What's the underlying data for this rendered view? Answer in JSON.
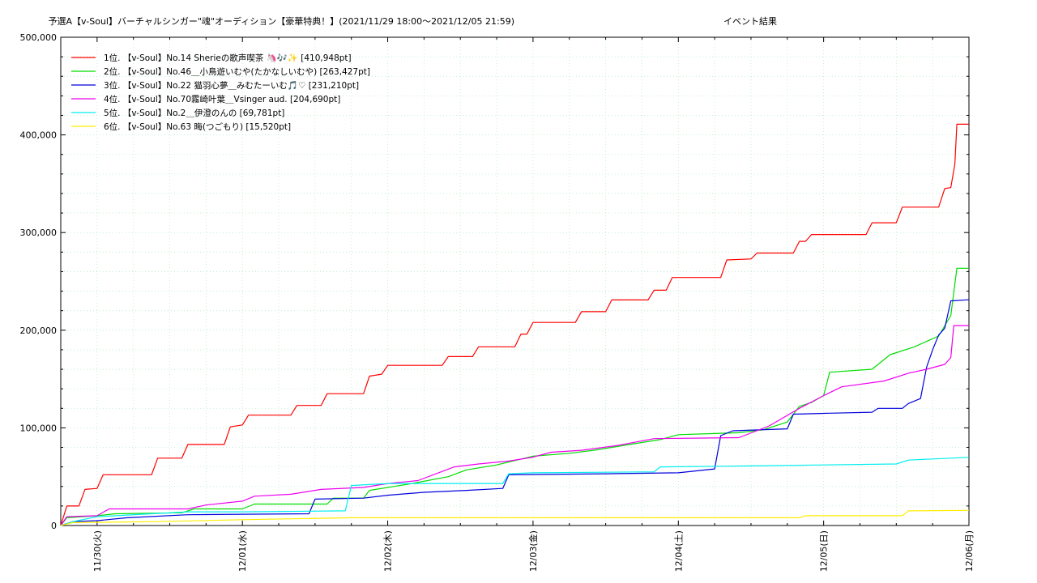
{
  "chart_data": {
    "type": "line",
    "title": "予選A【v-Soul】バーチャルシンガー\"魂\"オーディション【豪華特典！】(2021/11/29 18:00〜2021/12/05 21:59)",
    "subtitle": "イベント結果",
    "xlim": [
      "2021-11-29 18:00",
      "2021-12-06 00:00"
    ],
    "ylim": [
      0,
      500000
    ],
    "y_ticks": [
      "0",
      "100,000",
      "200,000",
      "300,000",
      "400,000",
      "500,000"
    ],
    "x_ticks": [
      {
        "x": "2021-11-30 00:00",
        "label": "11/30(火)"
      },
      {
        "x": "2021-12-01 00:00",
        "label": "12/01(水)"
      },
      {
        "x": "2021-12-02 00:00",
        "label": "12/02(木)"
      },
      {
        "x": "2021-12-03 00:00",
        "label": "12/03(金)"
      },
      {
        "x": "2021-12-04 00:00",
        "label": "12/04(土)"
      },
      {
        "x": "2021-12-05 00:00",
        "label": "12/05(日)"
      },
      {
        "x": "2021-12-06 00:00",
        "label": "12/06(月)"
      }
    ],
    "grid": true,
    "legend_position": "top-left",
    "series": [
      {
        "name": "1位. 【v-Soul】No.14 Sherieの歌声喫茶 🦄🎶✨ [410,948pt]",
        "color": "#ff0000",
        "points": [
          [
            "2021-11-29 18:00",
            0
          ],
          [
            "2021-11-29 19:00",
            20000
          ],
          [
            "2021-11-29 21:00",
            20000
          ],
          [
            "2021-11-29 22:00",
            37000
          ],
          [
            "2021-11-30 00:00",
            38000
          ],
          [
            "2021-11-30 01:00",
            52000
          ],
          [
            "2021-11-30 09:00",
            52000
          ],
          [
            "2021-11-30 10:00",
            69000
          ],
          [
            "2021-11-30 14:00",
            69000
          ],
          [
            "2021-11-30 15:00",
            83000
          ],
          [
            "2021-11-30 21:00",
            83000
          ],
          [
            "2021-11-30 22:00",
            101000
          ],
          [
            "2021-12-01 00:00",
            103000
          ],
          [
            "2021-12-01 01:00",
            113000
          ],
          [
            "2021-12-01 08:00",
            113000
          ],
          [
            "2021-12-01 09:00",
            123000
          ],
          [
            "2021-12-01 13:00",
            123000
          ],
          [
            "2021-12-01 14:00",
            135000
          ],
          [
            "2021-12-01 20:00",
            135000
          ],
          [
            "2021-12-01 21:00",
            153000
          ],
          [
            "2021-12-01 23:00",
            155000
          ],
          [
            "2021-12-02 00:00",
            164000
          ],
          [
            "2021-12-02 09:00",
            164000
          ],
          [
            "2021-12-02 10:00",
            173000
          ],
          [
            "2021-12-02 14:00",
            173000
          ],
          [
            "2021-12-02 15:00",
            183000
          ],
          [
            "2021-12-02 21:00",
            183000
          ],
          [
            "2021-12-02 22:00",
            196000
          ],
          [
            "2021-12-02 23:00",
            196000
          ],
          [
            "2021-12-03 00:00",
            208000
          ],
          [
            "2021-12-03 07:00",
            208000
          ],
          [
            "2021-12-03 08:00",
            219000
          ],
          [
            "2021-12-03 12:00",
            219000
          ],
          [
            "2021-12-03 13:00",
            231000
          ],
          [
            "2021-12-03 19:00",
            231000
          ],
          [
            "2021-12-03 20:00",
            241000
          ],
          [
            "2021-12-03 22:00",
            241000
          ],
          [
            "2021-12-03 23:00",
            254000
          ],
          [
            "2021-12-04 07:00",
            254000
          ],
          [
            "2021-12-04 08:00",
            272000
          ],
          [
            "2021-12-04 12:00",
            273000
          ],
          [
            "2021-12-04 13:00",
            279000
          ],
          [
            "2021-12-04 19:00",
            279000
          ],
          [
            "2021-12-04 20:00",
            291000
          ],
          [
            "2021-12-04 21:00",
            291000
          ],
          [
            "2021-12-04 22:00",
            298000
          ],
          [
            "2021-12-05 07:00",
            298000
          ],
          [
            "2021-12-05 08:00",
            310000
          ],
          [
            "2021-12-05 12:00",
            310000
          ],
          [
            "2021-12-05 13:00",
            326000
          ],
          [
            "2021-12-05 19:00",
            326000
          ],
          [
            "2021-12-05 20:00",
            345000
          ],
          [
            "2021-12-05 21:00",
            346000
          ],
          [
            "2021-12-05 21:40",
            370000
          ],
          [
            "2021-12-05 22:00",
            410948
          ],
          [
            "2021-12-05 23:59",
            410948
          ]
        ]
      },
      {
        "name": "2位. 【v-Soul】No.46＿小鳥遊いむや(たかなしいむや) [263,427pt]",
        "color": "#00dd00",
        "points": [
          [
            "2021-11-29 18:00",
            0
          ],
          [
            "2021-11-29 19:00",
            8000
          ],
          [
            "2021-11-30 00:00",
            10000
          ],
          [
            "2021-11-30 03:00",
            12000
          ],
          [
            "2021-11-30 14:00",
            13000
          ],
          [
            "2021-11-30 16:00",
            17000
          ],
          [
            "2021-12-01 00:00",
            17000
          ],
          [
            "2021-12-01 02:00",
            22000
          ],
          [
            "2021-12-01 14:00",
            22000
          ],
          [
            "2021-12-01 15:00",
            28000
          ],
          [
            "2021-12-01 20:00",
            28000
          ],
          [
            "2021-12-01 21:00",
            36000
          ],
          [
            "2021-12-02 01:00",
            40000
          ],
          [
            "2021-12-02 04:00",
            43000
          ],
          [
            "2021-12-02 10:00",
            50000
          ],
          [
            "2021-12-02 13:00",
            57000
          ],
          [
            "2021-12-02 18:00",
            62000
          ],
          [
            "2021-12-03 00:00",
            71000
          ],
          [
            "2021-12-03 06:00",
            74000
          ],
          [
            "2021-12-03 10:00",
            77000
          ],
          [
            "2021-12-03 16:00",
            83000
          ],
          [
            "2021-12-03 21:00",
            88000
          ],
          [
            "2021-12-04 00:00",
            93000
          ],
          [
            "2021-12-04 10:00",
            95000
          ],
          [
            "2021-12-04 14:00",
            98000
          ],
          [
            "2021-12-04 18:00",
            106000
          ],
          [
            "2021-12-04 20:00",
            122000
          ],
          [
            "2021-12-04 22:00",
            126000
          ],
          [
            "2021-12-05 00:00",
            133000
          ],
          [
            "2021-12-05 01:00",
            157000
          ],
          [
            "2021-12-05 08:00",
            160000
          ],
          [
            "2021-12-05 11:00",
            175000
          ],
          [
            "2021-12-05 15:00",
            183000
          ],
          [
            "2021-12-05 19:00",
            194000
          ],
          [
            "2021-12-05 21:00",
            215000
          ],
          [
            "2021-12-05 22:00",
            263427
          ],
          [
            "2021-12-05 23:59",
            263427
          ]
        ]
      },
      {
        "name": "3位. 【v-Soul】No.22 猫羽心夢＿みむたーいむ🎵♡ [231,210pt]",
        "color": "#0000dd",
        "points": [
          [
            "2021-11-29 18:00",
            0
          ],
          [
            "2021-11-29 20:00",
            4000
          ],
          [
            "2021-11-30 00:00",
            5000
          ],
          [
            "2021-11-30 05:00",
            8000
          ],
          [
            "2021-11-30 15:00",
            11000
          ],
          [
            "2021-12-01 00:00",
            11500
          ],
          [
            "2021-12-01 11:00",
            12000
          ],
          [
            "2021-12-01 12:00",
            27000
          ],
          [
            "2021-12-01 20:00",
            28000
          ],
          [
            "2021-12-02 00:00",
            31000
          ],
          [
            "2021-12-02 06:00",
            34000
          ],
          [
            "2021-12-02 13:00",
            36000
          ],
          [
            "2021-12-02 19:00",
            38000
          ],
          [
            "2021-12-02 20:00",
            52000
          ],
          [
            "2021-12-03 12:00",
            53000
          ],
          [
            "2021-12-04 00:00",
            54000
          ],
          [
            "2021-12-04 06:00",
            58000
          ],
          [
            "2021-12-04 07:00",
            92000
          ],
          [
            "2021-12-04 09:00",
            97000
          ],
          [
            "2021-12-04 18:00",
            99000
          ],
          [
            "2021-12-04 19:00",
            114000
          ],
          [
            "2021-12-05 01:00",
            115000
          ],
          [
            "2021-12-05 08:00",
            116000
          ],
          [
            "2021-12-05 09:00",
            120000
          ],
          [
            "2021-12-05 13:00",
            120000
          ],
          [
            "2021-12-05 14:00",
            125000
          ],
          [
            "2021-12-05 16:00",
            130000
          ],
          [
            "2021-12-05 17:00",
            162000
          ],
          [
            "2021-12-05 18:00",
            180000
          ],
          [
            "2021-12-05 19:00",
            195000
          ],
          [
            "2021-12-05 20:00",
            202000
          ],
          [
            "2021-12-05 21:00",
            230000
          ],
          [
            "2021-12-05 23:59",
            231210
          ]
        ]
      },
      {
        "name": "4位. 【v-Soul】No.70霧崎叶葉＿Vsinger aud. [204,690pt]",
        "color": "#ee00ee",
        "points": [
          [
            "2021-11-29 18:00",
            0
          ],
          [
            "2021-11-29 19:00",
            9000
          ],
          [
            "2021-11-30 00:00",
            10000
          ],
          [
            "2021-11-30 02:00",
            17000
          ],
          [
            "2021-11-30 15:00",
            17000
          ],
          [
            "2021-11-30 18:00",
            21000
          ],
          [
            "2021-12-01 00:00",
            25000
          ],
          [
            "2021-12-01 02:00",
            30000
          ],
          [
            "2021-12-01 08:00",
            32000
          ],
          [
            "2021-12-01 13:00",
            37000
          ],
          [
            "2021-12-01 20:00",
            39000
          ],
          [
            "2021-12-02 00:00",
            43000
          ],
          [
            "2021-12-02 05:00",
            46000
          ],
          [
            "2021-12-02 11:00",
            60000
          ],
          [
            "2021-12-02 15:00",
            63000
          ],
          [
            "2021-12-02 20:00",
            66000
          ],
          [
            "2021-12-03 00:00",
            70000
          ],
          [
            "2021-12-03 03:00",
            75000
          ],
          [
            "2021-12-03 08:00",
            77000
          ],
          [
            "2021-12-03 14:00",
            82000
          ],
          [
            "2021-12-03 20:00",
            89000
          ],
          [
            "2021-12-04 10:00",
            90000
          ],
          [
            "2021-12-04 15:00",
            102000
          ],
          [
            "2021-12-04 20:00",
            120000
          ],
          [
            "2021-12-05 00:00",
            133000
          ],
          [
            "2021-12-05 03:00",
            142000
          ],
          [
            "2021-12-05 10:00",
            148000
          ],
          [
            "2021-12-05 14:00",
            156000
          ],
          [
            "2021-12-05 17:00",
            160000
          ],
          [
            "2021-12-05 20:00",
            165000
          ],
          [
            "2021-12-05 21:00",
            172000
          ],
          [
            "2021-12-05 21:30",
            204690
          ],
          [
            "2021-12-05 23:59",
            204690
          ]
        ]
      },
      {
        "name": "5位. 【v-Soul】No.2＿伊澄のんの [69,781pt]",
        "color": "#00eeee",
        "points": [
          [
            "2021-11-29 18:00",
            0
          ],
          [
            "2021-11-29 20:00",
            4000
          ],
          [
            "2021-11-30 00:00",
            9000
          ],
          [
            "2021-11-30 15:00",
            14000
          ],
          [
            "2021-12-01 00:00",
            14000
          ],
          [
            "2021-12-01 17:00",
            15000
          ],
          [
            "2021-12-01 18:00",
            41000
          ],
          [
            "2021-12-02 00:00",
            43000
          ],
          [
            "2021-12-02 19:00",
            43000
          ],
          [
            "2021-12-02 20:00",
            53000
          ],
          [
            "2021-12-03 00:00",
            54000
          ],
          [
            "2021-12-03 20:00",
            55000
          ],
          [
            "2021-12-03 21:00",
            60000
          ],
          [
            "2021-12-04 12:00",
            61000
          ],
          [
            "2021-12-05 00:00",
            62000
          ],
          [
            "2021-12-05 12:00",
            63000
          ],
          [
            "2021-12-05 14:00",
            67000
          ],
          [
            "2021-12-05 21:00",
            69000
          ],
          [
            "2021-12-05 23:59",
            69781
          ]
        ]
      },
      {
        "name": "6位. 【v-Soul】No.63 晦(つごもり) [15,520pt]",
        "color": "#ffee00",
        "points": [
          [
            "2021-11-29 18:00",
            0
          ],
          [
            "2021-11-29 20:00",
            3000
          ],
          [
            "2021-11-30 10:00",
            4000
          ],
          [
            "2021-12-01 00:00",
            6000
          ],
          [
            "2021-12-01 18:00",
            8000
          ],
          [
            "2021-12-04 20:00",
            8000
          ],
          [
            "2021-12-04 21:00",
            10000
          ],
          [
            "2021-12-05 13:00",
            10000
          ],
          [
            "2021-12-05 14:00",
            15000
          ],
          [
            "2021-12-05 23:59",
            15520
          ]
        ]
      }
    ]
  }
}
